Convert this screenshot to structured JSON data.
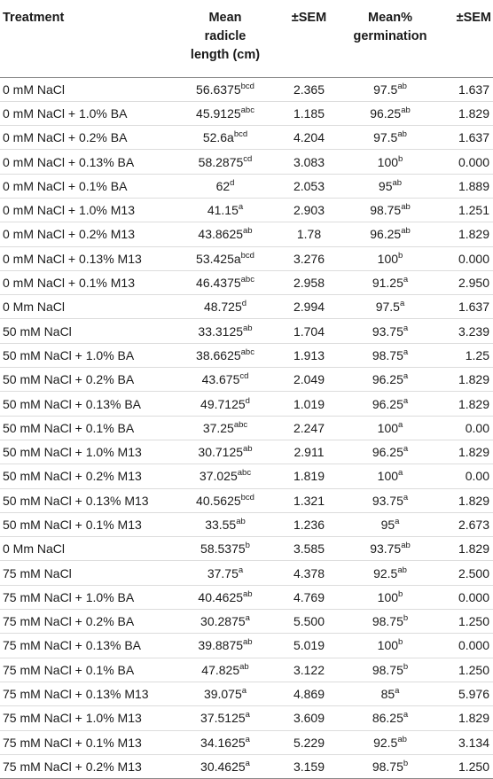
{
  "table": {
    "headers": {
      "treatment": "Treatment",
      "radicle_lines": [
        "Mean",
        "radicle",
        "length (cm)"
      ],
      "sem1": "±SEM",
      "germination_lines": [
        "Mean%",
        "germination"
      ],
      "sem2": "±SEM"
    },
    "rows": [
      {
        "treatment": "0 mM NaCl",
        "radicle": "56.6375",
        "radicle_sup": "bcd",
        "sem1": "2.365",
        "germ": "97.5",
        "germ_sup": "ab",
        "sem2": "1.637"
      },
      {
        "treatment": "0 mM NaCl + 1.0% BA",
        "radicle": "45.9125",
        "radicle_sup": "abc",
        "sem1": "1.185",
        "germ": "96.25",
        "germ_sup": "ab",
        "sem2": "1.829"
      },
      {
        "treatment": "0 mM NaCl + 0.2% BA",
        "radicle": "52.6a",
        "radicle_sup": "bcd",
        "sem1": "4.204",
        "germ": "97.5",
        "germ_sup": "ab",
        "sem2": "1.637"
      },
      {
        "treatment": "0 mM NaCl + 0.13% BA",
        "radicle": "58.2875",
        "radicle_sup": "cd",
        "sem1": "3.083",
        "germ": "100",
        "germ_sup": "b",
        "sem2": "0.000"
      },
      {
        "treatment": "0 mM NaCl + 0.1% BA",
        "radicle": "62",
        "radicle_sup": "d",
        "sem1": "2.053",
        "germ": "95",
        "germ_sup": "ab",
        "sem2": "1.889"
      },
      {
        "treatment": "0 mM NaCl + 1.0% M13",
        "radicle": "41.15",
        "radicle_sup": "a",
        "sem1": "2.903",
        "germ": "98.75",
        "germ_sup": "ab",
        "sem2": "1.251"
      },
      {
        "treatment": "0 mM NaCl + 0.2% M13",
        "radicle": "43.8625",
        "radicle_sup": "ab",
        "sem1": "1.78",
        "germ": "96.25",
        "germ_sup": "ab",
        "sem2": "1.829"
      },
      {
        "treatment": "0 mM NaCl + 0.13% M13",
        "radicle": "53.425a",
        "radicle_sup": "bcd",
        "sem1": "3.276",
        "germ": "100",
        "germ_sup": "b",
        "sem2": "0.000"
      },
      {
        "treatment": "0 mM NaCl + 0.1% M13",
        "radicle": "46.4375",
        "radicle_sup": "abc",
        "sem1": "2.958",
        "germ": "91.25",
        "germ_sup": "a",
        "sem2": "2.950"
      },
      {
        "treatment": "0 Mm NaCl",
        "radicle": "48.725",
        "radicle_sup": "d",
        "sem1": "2.994",
        "germ": "97.5",
        "germ_sup": "a",
        "sem2": "1.637"
      },
      {
        "treatment": "50 mM NaCl",
        "radicle": "33.3125",
        "radicle_sup": "ab",
        "sem1": "1.704",
        "germ": "93.75",
        "germ_sup": "a",
        "sem2": "3.239"
      },
      {
        "treatment": "50 mM NaCl + 1.0% BA",
        "radicle": "38.6625",
        "radicle_sup": "abc",
        "sem1": "1.913",
        "germ": "98.75",
        "germ_sup": "a",
        "sem2": "1.25"
      },
      {
        "treatment": "50 mM NaCl + 0.2% BA",
        "radicle": "43.675",
        "radicle_sup": "cd",
        "sem1": "2.049",
        "germ": "96.25",
        "germ_sup": "a",
        "sem2": "1.829"
      },
      {
        "treatment": "50 mM NaCl + 0.13% BA",
        "radicle": "49.7125",
        "radicle_sup": "d",
        "sem1": "1.019",
        "germ": "96.25",
        "germ_sup": "a",
        "sem2": "1.829"
      },
      {
        "treatment": "50 mM NaCl + 0.1% BA",
        "radicle": "37.25",
        "radicle_sup": "abc",
        "sem1": "2.247",
        "germ": "100",
        "germ_sup": "a",
        "sem2": "0.00"
      },
      {
        "treatment": "50 mM NaCl + 1.0% M13",
        "radicle": "30.7125",
        "radicle_sup": "ab",
        "sem1": "2.911",
        "germ": "96.25",
        "germ_sup": "a",
        "sem2": "1.829"
      },
      {
        "treatment": "50 mM NaCl + 0.2% M13",
        "radicle": "37.025",
        "radicle_sup": "abc",
        "sem1": "1.819",
        "germ": "100",
        "germ_sup": "a",
        "sem2": "0.00"
      },
      {
        "treatment": "50 mM NaCl + 0.13% M13",
        "radicle": "40.5625",
        "radicle_sup": "bcd",
        "sem1": "1.321",
        "germ": "93.75",
        "germ_sup": "a",
        "sem2": "1.829"
      },
      {
        "treatment": "50 mM NaCl + 0.1% M13",
        "radicle": "33.55",
        "radicle_sup": "ab",
        "sem1": "1.236",
        "germ": "95",
        "germ_sup": "a",
        "sem2": "2.673"
      },
      {
        "treatment": "0 Mm NaCl",
        "radicle": "58.5375",
        "radicle_sup": "b",
        "sem1": "3.585",
        "germ": "93.75",
        "germ_sup": "ab",
        "sem2": "1.829"
      },
      {
        "treatment": "75 mM NaCl",
        "radicle": "37.75",
        "radicle_sup": "a",
        "sem1": "4.378",
        "germ": "92.5",
        "germ_sup": "ab",
        "sem2": "2.500"
      },
      {
        "treatment": "75 mM NaCl + 1.0% BA",
        "radicle": "40.4625",
        "radicle_sup": "ab",
        "sem1": "4.769",
        "germ": "100",
        "germ_sup": "b",
        "sem2": "0.000"
      },
      {
        "treatment": "75 mM NaCl + 0.2% BA",
        "radicle": "30.2875",
        "radicle_sup": "a",
        "sem1": "5.500",
        "germ": "98.75",
        "germ_sup": "b",
        "sem2": "1.250"
      },
      {
        "treatment": "75 mM NaCl + 0.13% BA",
        "radicle": "39.8875",
        "radicle_sup": "ab",
        "sem1": "5.019",
        "germ": "100",
        "germ_sup": "b",
        "sem2": "0.000"
      },
      {
        "treatment": "75 mM NaCl + 0.1% BA",
        "radicle": "47.825",
        "radicle_sup": "ab",
        "sem1": "3.122",
        "germ": "98.75",
        "germ_sup": "b",
        "sem2": "1.250"
      },
      {
        "treatment": "75 mM NaCl + 0.13% M13",
        "radicle": "39.075",
        "radicle_sup": "a",
        "sem1": "4.869",
        "germ": "85",
        "germ_sup": "a",
        "sem2": "5.976"
      },
      {
        "treatment": "75 mM NaCl + 1.0% M13",
        "radicle": "37.5125",
        "radicle_sup": "a",
        "sem1": "3.609",
        "germ": "86.25",
        "germ_sup": "a",
        "sem2": "1.829"
      },
      {
        "treatment": "75 mM NaCl + 0.1% M13",
        "radicle": "34.1625",
        "radicle_sup": "a",
        "sem1": "5.229",
        "germ": "92.5",
        "germ_sup": "ab",
        "sem2": "3.134"
      },
      {
        "treatment": "75 mM NaCl + 0.2% M13",
        "radicle": "30.4625",
        "radicle_sup": "a",
        "sem1": "3.159",
        "germ": "98.75",
        "germ_sup": "b",
        "sem2": "1.250"
      }
    ]
  }
}
